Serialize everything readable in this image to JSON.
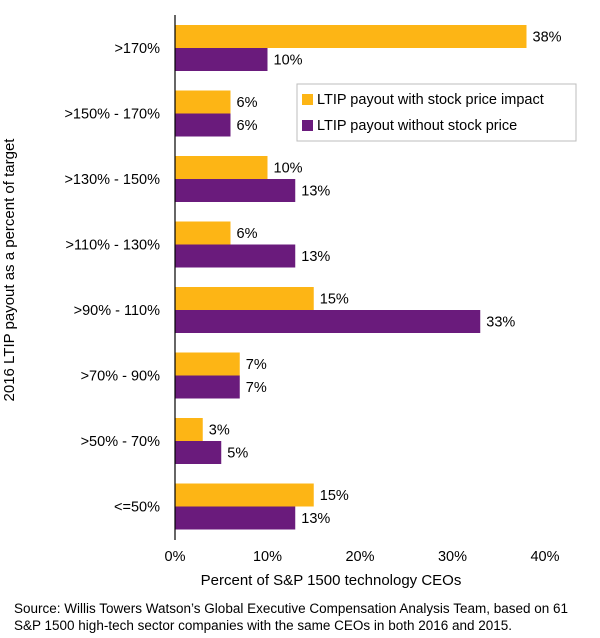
{
  "chart_data": {
    "type": "bar",
    "orientation": "horizontal",
    "title": "",
    "xlabel": "Percent of S&P 1500 technology CEOs",
    "ylabel": "2016 LTIP payout as a percent of target",
    "xlim": [
      0,
      40
    ],
    "xticks": [
      "0%",
      "10%",
      "20%",
      "30%",
      "40%"
    ],
    "categories": [
      ">170%",
      ">150% - 170%",
      ">130% - 150%",
      ">110% - 130%",
      ">90% - 110%",
      ">70% - 90%",
      ">50% - 70%",
      "<=50%"
    ],
    "series": [
      {
        "name": "LTIP payout with stock price impact",
        "color": "#FDB515",
        "values": [
          38,
          6,
          10,
          6,
          15,
          7,
          3,
          15
        ],
        "labels": [
          "38%",
          "6%",
          "10%",
          "6%",
          "15%",
          "7%",
          "3%",
          "15%"
        ]
      },
      {
        "name": "LTIP payout without stock price",
        "color": "#6A1B7C",
        "values": [
          10,
          6,
          13,
          13,
          33,
          7,
          5,
          13
        ],
        "labels": [
          "10%",
          "6%",
          "13%",
          "13%",
          "33%",
          "7%",
          "5%",
          "13%"
        ]
      }
    ],
    "grid": false,
    "legend": "upper-right"
  },
  "source_note": "Source: Willis Towers Watson’s Global Executive Compensation Analysis Team, based on 61 S&P 1500 high-tech sector companies with the same CEOs in both 2016 and 2015."
}
